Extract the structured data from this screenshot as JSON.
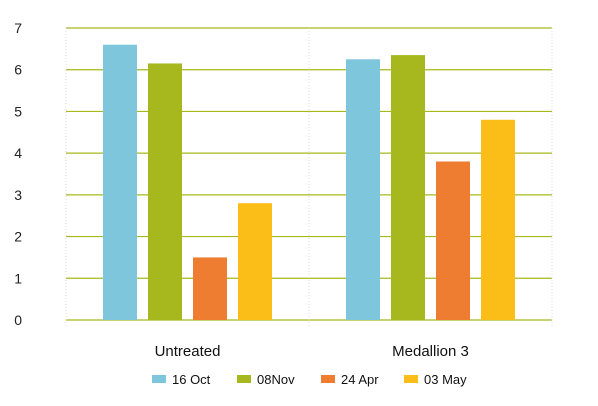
{
  "chart_data": {
    "type": "bar",
    "title": "",
    "xlabel": "",
    "ylabel": "",
    "categories": [
      "Untreated",
      "Medallion 3"
    ],
    "ylim": [
      0,
      7
    ],
    "yticks": [
      0,
      1,
      2,
      3,
      4,
      5,
      6,
      7
    ],
    "grid": true,
    "legend_position": "bottom",
    "series": [
      {
        "name": "16 Oct",
        "color": "#7ec6dc",
        "values": [
          6.6,
          6.25
        ]
      },
      {
        "name": "08Nov",
        "color": "#a6b81e",
        "values": [
          6.15,
          6.35
        ]
      },
      {
        "name": "24 Apr",
        "color": "#ee7d31",
        "values": [
          1.5,
          3.8
        ]
      },
      {
        "name": "03 May",
        "color": "#fbbe18",
        "values": [
          2.8,
          4.8
        ]
      }
    ],
    "grid_color": "#a8b81e"
  }
}
